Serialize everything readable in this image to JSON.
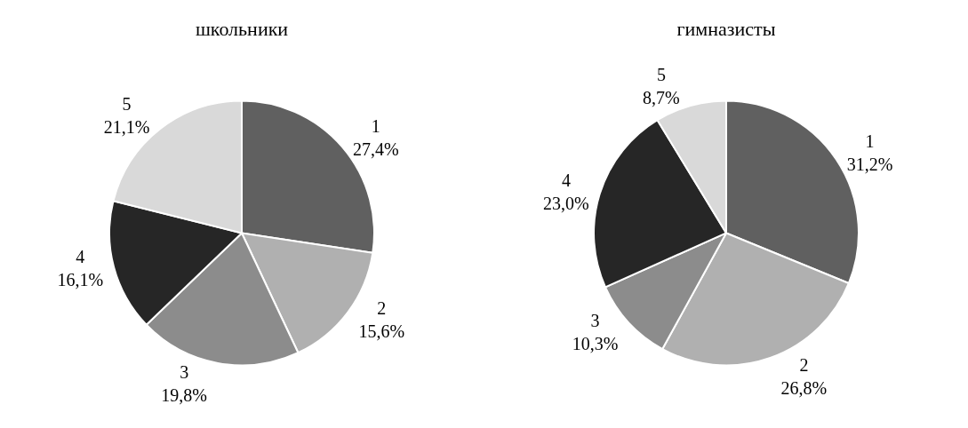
{
  "chart_data": [
    {
      "type": "pie",
      "title": "школьники",
      "categories": [
        "1",
        "2",
        "3",
        "4",
        "5"
      ],
      "values": [
        27.4,
        15.6,
        19.8,
        16.1,
        21.1
      ],
      "value_labels": [
        "27,4%",
        "15,6%",
        "19,8%",
        "16,1%",
        "21,1%"
      ],
      "colors": [
        "#606060",
        "#b0b0b0",
        "#8c8c8c",
        "#262626",
        "#d9d9d9"
      ],
      "legend": false
    },
    {
      "type": "pie",
      "title": "гимназисты",
      "categories": [
        "1",
        "2",
        "3",
        "4",
        "5"
      ],
      "values": [
        31.2,
        26.8,
        10.3,
        23.0,
        8.7
      ],
      "value_labels": [
        "31,2%",
        "26,8%",
        "10,3%",
        "23,0%",
        "8,7%"
      ],
      "colors": [
        "#606060",
        "#b0b0b0",
        "#8c8c8c",
        "#262626",
        "#d9d9d9"
      ],
      "legend": false
    }
  ]
}
